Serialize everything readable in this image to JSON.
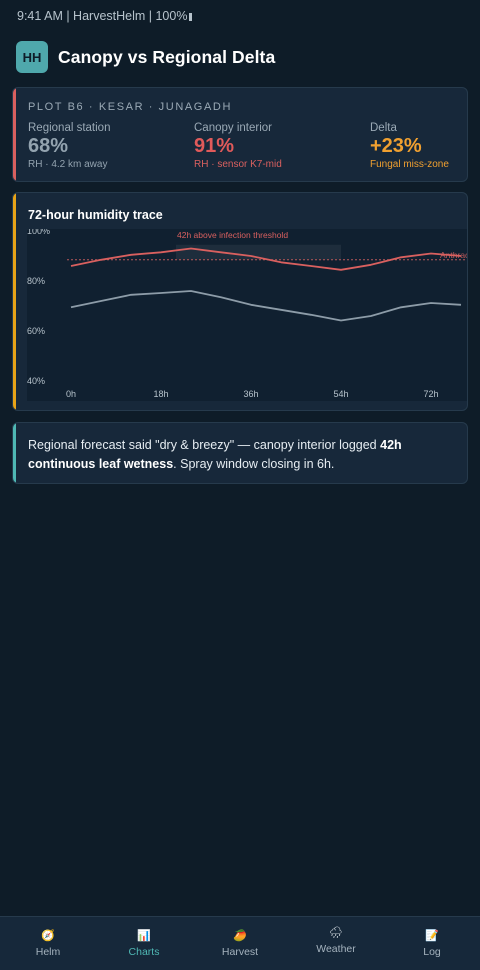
{
  "status": {
    "text": "9:41 AM | HarvestHelm | 100%"
  },
  "header": {
    "logo": "HH",
    "title": "Canopy vs Regional Delta"
  },
  "compare": {
    "plot": "PLOT B6 · KESAR · JUNAGADH",
    "regional": {
      "label": "Regional station",
      "value": "68%",
      "sub": "RH · 4.2 km away"
    },
    "canopy": {
      "label": "Canopy interior",
      "value": "91%",
      "sub": "RH · sensor K7-mid"
    },
    "delta": {
      "label": "Delta",
      "value": "+23%",
      "sub": "Fungal miss-zone"
    }
  },
  "chart": {
    "title": "72-hour humidity trace",
    "annotation": "42h above infection threshold",
    "threshold_label": "Anthracnose",
    "colors": {
      "canopy": "#d9605f",
      "regional": "#8d9ca8",
      "threshold": "#b8585a",
      "accent_compare": "#d9605f",
      "accent_chart": "#e8a317",
      "accent_note": "#4fb8b4"
    }
  },
  "chart_data": {
    "type": "line",
    "x": [
      0,
      6,
      12,
      18,
      24,
      30,
      36,
      42,
      48,
      54,
      60,
      66,
      72,
      78
    ],
    "series": [
      {
        "values": [
          86,
          88.5,
          90.5,
          91.5,
          93,
          91.5,
          90,
          87.5,
          86,
          84.5,
          86.5,
          89.5,
          91,
          90
        ]
      },
      {
        "values": [
          69.5,
          72,
          74.5,
          75.2,
          76,
          73.5,
          70.5,
          68.5,
          66.5,
          64.2,
          66,
          69.5,
          71.2,
          70.5
        ]
      }
    ],
    "threshold": 88.5,
    "highlight": [
      21,
      54
    ],
    "ylim": [
      40,
      100
    ],
    "yticks": [
      "100%",
      "80%",
      "60%",
      "40%"
    ],
    "ytick_values": [
      100,
      80,
      60,
      40
    ],
    "xticks": [
      "0h",
      "18h",
      "36h",
      "54h",
      "72h"
    ],
    "xtick_values": [
      0,
      18,
      36,
      54,
      72
    ],
    "grid": false
  },
  "note": {
    "part1": "Regional forecast said \"dry & breezy\" — canopy interior logged ",
    "bold": "42h continuous leaf wetness",
    "part2": ". Spray window closing in 6h."
  },
  "nav": [
    {
      "label": "Helm",
      "icon": "compass-icon"
    },
    {
      "label": "Charts",
      "icon": "bar-chart-icon"
    },
    {
      "label": "Harvest",
      "icon": "mango-icon"
    },
    {
      "label": "Weather",
      "icon": "rain-cloud-icon"
    },
    {
      "label": "Log",
      "icon": "memo-icon"
    }
  ]
}
